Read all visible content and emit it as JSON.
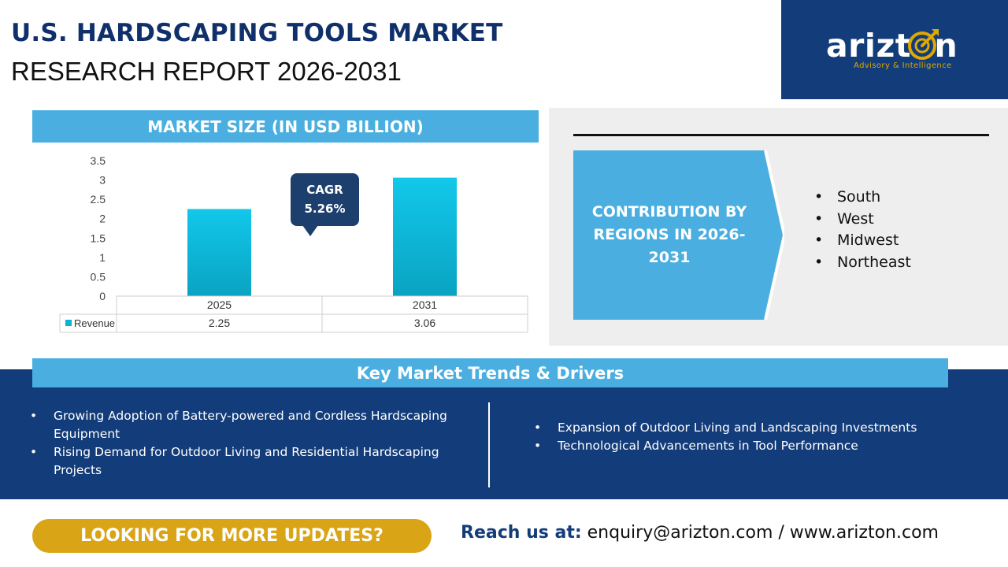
{
  "header": {
    "title_line1": "U.S. HARDSCAPING TOOLS MARKET",
    "title_line2": "RESEARCH REPORT 2026-2031"
  },
  "logo": {
    "brand": "arizt  n",
    "tagline": "Advisory & Intelligence"
  },
  "market_size": {
    "heading": "MARKET SIZE (IN USD BILLION)",
    "cagr_label": "CAGR",
    "cagr_value": "5.26%"
  },
  "chart_data": {
    "type": "bar",
    "categories": [
      "2025",
      "2031"
    ],
    "series": [
      {
        "name": "Revenue",
        "values": [
          2.25,
          3.06
        ],
        "display_values": [
          "2.25",
          "3.06"
        ]
      }
    ],
    "yticks": [
      "0",
      "0.5",
      "1",
      "1.5",
      "2",
      "2.5",
      "3",
      "3.5"
    ],
    "ylim": [
      0,
      3.5
    ],
    "title": "",
    "xlabel": "",
    "ylabel": "",
    "grid": false,
    "data_table": true,
    "colors": {
      "bar_top": "#12c8ea",
      "bar_bottom": "#0aa3c2",
      "legend_key": "#0ab3d3"
    }
  },
  "regions": {
    "heading": "CONTRIBUTION BY REGIONS IN 2026-2031",
    "items": [
      "South",
      "West",
      "Midwest",
      "Northeast"
    ]
  },
  "trends": {
    "heading": "Key Market Trends & Drivers",
    "left": [
      "Growing Adoption of Battery-powered and Cordless Hardscaping Equipment",
      "Rising Demand for Outdoor Living and Residential Hardscaping Projects"
    ],
    "right": [
      "Expansion of Outdoor Living and Landscaping Investments",
      "Technological Advancements in Tool Performance"
    ]
  },
  "footer": {
    "cta_label": "LOOKING FOR MORE UPDATES?",
    "reach_label": "Reach us at:",
    "contact": " enquiry@arizton.com / www.arizton.com"
  },
  "colors": {
    "navy": "#133c7a",
    "accent_blue": "#4aafe0",
    "gold": "#d9a416",
    "panel_gray": "#eeeeee"
  }
}
